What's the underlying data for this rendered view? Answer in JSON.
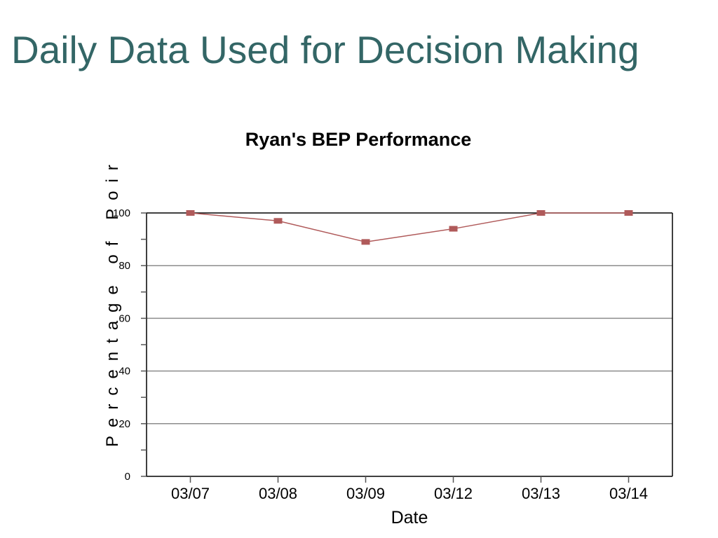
{
  "slide": {
    "title": "Daily Data Used for Decision Making"
  },
  "chart_data": {
    "type": "line",
    "title": "Ryan's BEP Performance",
    "xlabel": "Date",
    "ylabel": "Percentage of Poir",
    "categories": [
      "03/07",
      "03/08",
      "03/09",
      "03/12",
      "03/13",
      "03/14"
    ],
    "series": [
      {
        "values": [
          100,
          97,
          89,
          94,
          100,
          100
        ]
      }
    ],
    "ylim": [
      0,
      100
    ],
    "yticks": [
      0,
      20,
      40,
      60,
      80,
      100
    ],
    "grid": true,
    "line_color": "#b05a5a",
    "marker_color": "#b05a5a",
    "title_color": "#336666"
  }
}
